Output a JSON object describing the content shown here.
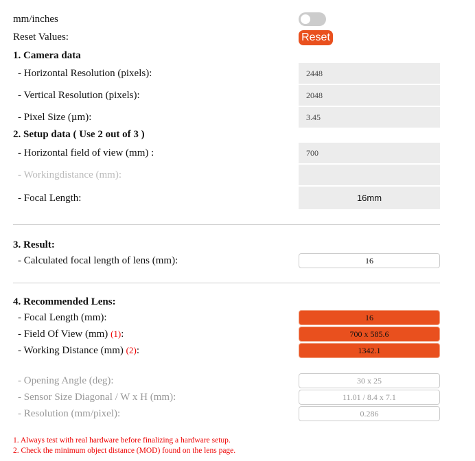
{
  "units": {
    "label": "mm/inches",
    "toggle_on": false
  },
  "reset": {
    "label": "Reset Values:",
    "button": "Reset",
    "color": "#e9501e"
  },
  "camera": {
    "heading": "1. Camera data",
    "rows": [
      {
        "label": "- Horizontal Resolution (pixels):",
        "value": "2448"
      },
      {
        "label": "- Vertical Resolution (pixels):",
        "value": "2048"
      },
      {
        "label": "- Pixel Size (µm):",
        "value": "3.45"
      }
    ]
  },
  "setup": {
    "heading": "2. Setup data ( Use 2 out of 3 )",
    "rows": [
      {
        "label": "- Horizontal field of view (mm) :",
        "value": "700"
      },
      {
        "label": "- Workingdistance (mm):",
        "value": ""
      },
      {
        "label": "- Focal Length:",
        "value": "16mm"
      }
    ]
  },
  "result": {
    "heading": "3. Result:",
    "label": "- Calculated focal length of lens (mm):",
    "value": "16"
  },
  "recommended": {
    "heading": "4. Recommended Lens:",
    "focal": {
      "label": "- Focal Length (mm):",
      "value": "16"
    },
    "fov": {
      "label": "- Field Of View (mm) ",
      "note": "(1)",
      "suffix": ":",
      "value": "700 x 585.6"
    },
    "wd": {
      "label": "- Working Distance (mm) ",
      "note": "(2)",
      "suffix": ":",
      "value": "1342.1"
    },
    "angle": {
      "label": "- Opening Angle (deg):",
      "value": "30 x 25"
    },
    "sensor": {
      "label": "- Sensor Size Diagonal / W x H (mm):",
      "value": "11.01 / 8.4 x 7.1"
    },
    "res": {
      "label": "- Resolution (mm/pixel):",
      "value": "0.286"
    }
  },
  "footnotes": [
    "1. Always test with real hardware before finalizing a hardware setup.",
    "2. Check the minimum object distance (MOD) found on the lens page."
  ]
}
